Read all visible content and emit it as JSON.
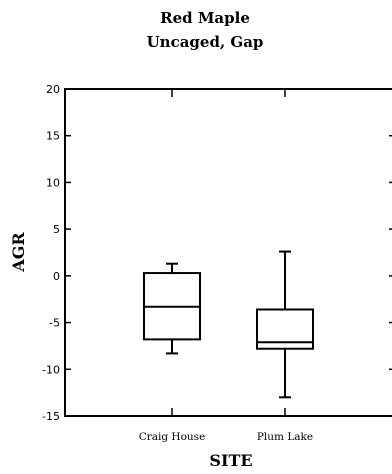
{
  "chart_data": {
    "type": "box",
    "title": "Red Maple",
    "subtitle": "Uncaged, Gap",
    "xlabel": "SITE",
    "ylabel": "AGR",
    "ylim": [
      -15,
      20
    ],
    "yticks": [
      20,
      15,
      10,
      5,
      0,
      -5,
      -10,
      -15
    ],
    "categories": [
      "Craig House",
      "Plum Lake"
    ],
    "boxes": [
      {
        "category": "Craig House",
        "min": -8.3,
        "q1": -6.8,
        "median": -3.3,
        "q3": 0.3,
        "max": 1.3
      },
      {
        "category": "Plum Lake",
        "min": -13.0,
        "q1": -7.8,
        "median": -7.1,
        "q3": -3.6,
        "max": 2.6
      }
    ],
    "grid": false
  }
}
